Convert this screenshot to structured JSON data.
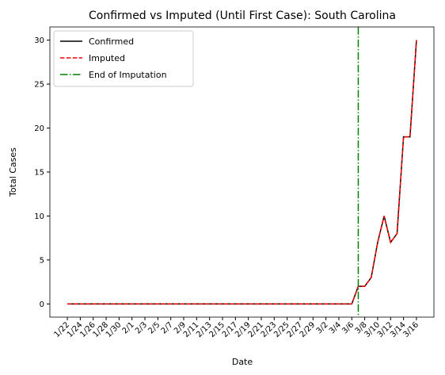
{
  "chart_data": {
    "type": "line",
    "title": "Confirmed vs Imputed (Until First Case): South Carolina",
    "xlabel": "Date",
    "ylabel": "Total Cases",
    "categories": [
      "1/22",
      null,
      "1/24",
      null,
      "1/26",
      null,
      "1/28",
      null,
      "1/30",
      null,
      "2/1",
      null,
      "2/3",
      null,
      "2/5",
      null,
      "2/7",
      null,
      "2/9",
      null,
      "2/11",
      null,
      "2/13",
      null,
      "2/15",
      null,
      "2/17",
      null,
      "2/19",
      null,
      "2/21",
      null,
      "2/23",
      null,
      "2/25",
      null,
      "2/27",
      null,
      "2/29",
      null,
      "3/2",
      null,
      "3/4",
      null,
      "3/6",
      null,
      "3/8",
      null,
      "3/10",
      null,
      "3/12",
      null,
      "3/14",
      null,
      "3/16"
    ],
    "series": [
      {
        "name": "Confirmed",
        "color": "#000000",
        "dash": "solid",
        "values": [
          0,
          0,
          0,
          0,
          0,
          0,
          0,
          0,
          0,
          0,
          0,
          0,
          0,
          0,
          0,
          0,
          0,
          0,
          0,
          0,
          0,
          0,
          0,
          0,
          0,
          0,
          0,
          0,
          0,
          0,
          0,
          0,
          0,
          0,
          0,
          0,
          0,
          0,
          0,
          0,
          0,
          0,
          0,
          0,
          0,
          2,
          2,
          3,
          7,
          10,
          7,
          8,
          19,
          19,
          30
        ]
      },
      {
        "name": "Imputed",
        "color": "#ff0000",
        "dash": "dashed",
        "values": [
          0,
          0,
          0,
          0,
          0,
          0,
          0,
          0,
          0,
          0,
          0,
          0,
          0,
          0,
          0,
          0,
          0,
          0,
          0,
          0,
          0,
          0,
          0,
          0,
          0,
          0,
          0,
          0,
          0,
          0,
          0,
          0,
          0,
          0,
          0,
          0,
          0,
          0,
          0,
          0,
          0,
          0,
          0,
          0,
          0,
          2,
          2,
          3,
          7,
          10,
          7,
          8,
          19,
          19,
          30
        ]
      }
    ],
    "vline_x": 45,
    "vline_label": "End of Imputation",
    "vline_color": "#008000",
    "ylim": [
      -1.5,
      31.5
    ],
    "yticks": [
      0,
      5,
      10,
      15,
      20,
      25,
      30
    ],
    "legend": "upper left",
    "grid": false
  }
}
